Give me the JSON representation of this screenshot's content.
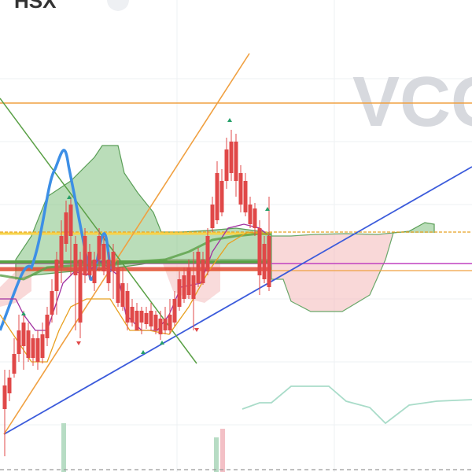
{
  "header": {
    "exchange": "HSX"
  },
  "watermark": "VCG"
}
